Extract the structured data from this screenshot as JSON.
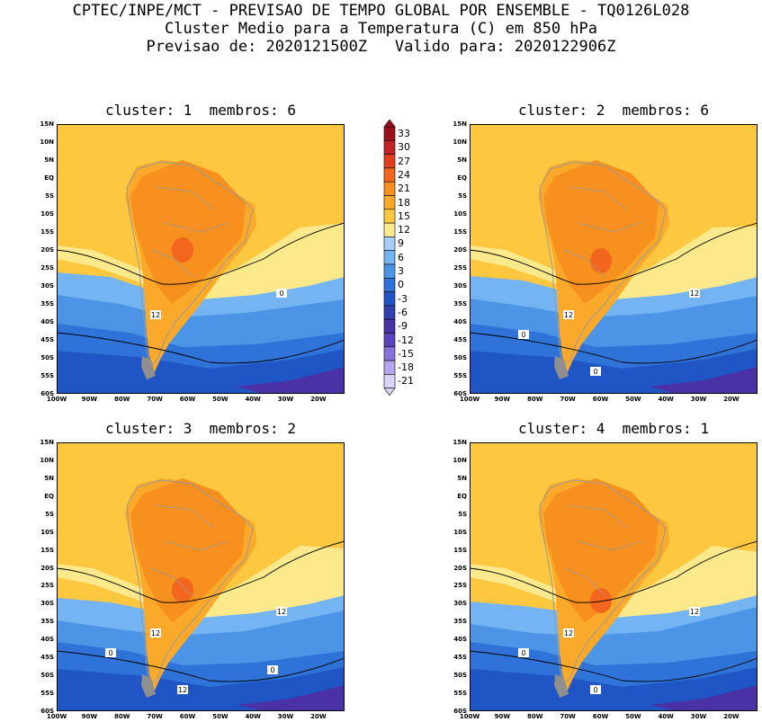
{
  "header": {
    "line1": "CPTEC/INPE/MCT - PREVISAO DE TEMPO GLOBAL POR ENSEMBLE - TQ0126L028",
    "line2": "Cluster Medio para a Temperatura (C) em 850 hPa",
    "line3": "Previsao de: 2020121500Z   Valido para: 2020122906Z"
  },
  "panels": [
    {
      "title": "cluster: 1  membros: 6",
      "contour_labels": [
        "12",
        "0"
      ]
    },
    {
      "title": "cluster: 2  membros: 6",
      "contour_labels": [
        "12",
        "12",
        "0",
        "0"
      ]
    },
    {
      "title": "cluster: 3  membros: 2",
      "contour_labels": [
        "12",
        "12",
        "12",
        "0",
        "0"
      ]
    },
    {
      "title": "cluster: 4  membros: 1",
      "contour_labels": [
        "12",
        "12",
        "0",
        "0"
      ]
    }
  ],
  "axes": {
    "lat_labels": [
      "15N",
      "10N",
      "5N",
      "EQ",
      "5S",
      "10S",
      "15S",
      "20S",
      "25S",
      "30S",
      "35S",
      "40S",
      "45S",
      "50S",
      "55S",
      "60S"
    ],
    "lon_labels": [
      "100W",
      "90W",
      "80W",
      "70W",
      "60W",
      "50W",
      "40W",
      "30W",
      "20W"
    ]
  },
  "colorbar": {
    "labels": [
      "33",
      "30",
      "27",
      "24",
      "21",
      "18",
      "15",
      "12",
      "9",
      "6",
      "3",
      "0",
      "-3",
      "-6",
      "-9",
      "-12",
      "-15",
      "-18",
      "-21"
    ],
    "colors": [
      "#9c0f1e",
      "#c22528",
      "#e0401c",
      "#f2661d",
      "#f7901e",
      "#faa92a",
      "#fdc840",
      "#fce98c",
      "#a5cdf7",
      "#75b4f2",
      "#4c95e6",
      "#2f73d9",
      "#1f55c5",
      "#3340b2",
      "#4a32a6",
      "#5d44bd",
      "#8872d9",
      "#b4a5ec",
      "#dcd3f8"
    ]
  },
  "chart_data": {
    "type": "heatmap",
    "variable": "Temperature (C) at 850 hPa",
    "lon_range": [
      -100,
      -12
    ],
    "lat_range": [
      -60,
      15
    ],
    "contour_levels": [
      0,
      12
    ],
    "color_levels": [
      -21,
      -18,
      -15,
      -12,
      -9,
      -6,
      -3,
      0,
      3,
      6,
      9,
      12,
      15,
      18,
      21,
      24,
      27,
      30,
      33
    ]
  }
}
